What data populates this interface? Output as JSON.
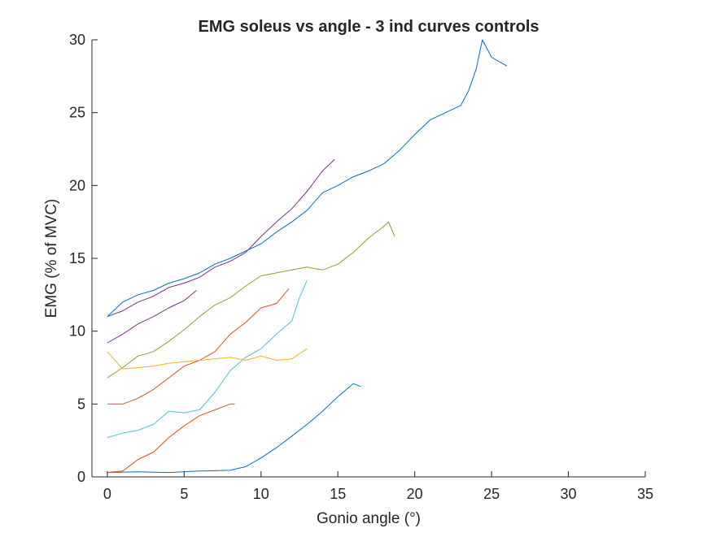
{
  "chart_data": {
    "type": "line",
    "title": "EMG soleus vs angle - 3 ind curves controls",
    "xlabel": "Gonio angle (°)",
    "ylabel": "EMG (% of MVC)",
    "xlim": [
      -1,
      35
    ],
    "ylim": [
      0,
      30
    ],
    "xticks": [
      0,
      5,
      10,
      15,
      20,
      25,
      30,
      35
    ],
    "yticks": [
      0,
      5,
      10,
      15,
      20,
      25,
      30
    ],
    "grid": false,
    "legend": "none",
    "series": [
      {
        "color": "#0072BD",
        "x": [
          0,
          2,
          4,
          6,
          8,
          9,
          10,
          11,
          12,
          13,
          14,
          15,
          16,
          16.5
        ],
        "y": [
          0.3,
          0.35,
          0.3,
          0.4,
          0.45,
          0.7,
          1.3,
          2.0,
          2.8,
          3.6,
          4.5,
          5.5,
          6.4,
          6.2
        ]
      },
      {
        "color": "#D95319",
        "x": [
          0,
          1,
          2,
          3,
          4,
          5,
          6,
          7,
          8,
          8.3
        ],
        "y": [
          0.3,
          0.4,
          1.2,
          1.7,
          2.7,
          3.5,
          4.2,
          4.6,
          5.0,
          5.0
        ]
      },
      {
        "color": "#4DBEEE",
        "x": [
          0,
          1,
          2,
          3,
          4,
          5,
          6,
          7,
          8,
          9,
          10,
          11,
          12,
          12.5,
          13
        ],
        "y": [
          2.7,
          3.0,
          3.2,
          3.6,
          4.5,
          4.4,
          4.6,
          5.8,
          7.3,
          8.2,
          8.8,
          9.8,
          10.7,
          12.3,
          13.5
        ]
      },
      {
        "color": "#D95319",
        "x": [
          0,
          1,
          2,
          3,
          4,
          5,
          6,
          7,
          8,
          9,
          10,
          11,
          11.8
        ],
        "y": [
          5.0,
          5.0,
          5.4,
          6.0,
          6.8,
          7.6,
          8.0,
          8.6,
          9.8,
          10.6,
          11.6,
          11.9,
          12.9
        ]
      },
      {
        "color": "#EDB120",
        "x": [
          0,
          0.5,
          1,
          2,
          3,
          4,
          5,
          6,
          7,
          8,
          9,
          10,
          11,
          12,
          13
        ],
        "y": [
          8.6,
          8.0,
          7.4,
          7.5,
          7.6,
          7.8,
          7.9,
          8.0,
          8.1,
          8.2,
          8.0,
          8.3,
          8.0,
          8.1,
          8.8
        ]
      },
      {
        "color": "#77AC30",
        "x": [
          0,
          1,
          2,
          3,
          4,
          5,
          6,
          7,
          8,
          9,
          10,
          11,
          12,
          13,
          14,
          15,
          16,
          17,
          18,
          18.3,
          18.7
        ],
        "y": [
          6.8,
          7.5,
          8.3,
          8.6,
          9.3,
          10.1,
          11.0,
          11.8,
          12.3,
          13.1,
          13.8,
          14.0,
          14.2,
          14.4,
          14.2,
          14.6,
          15.4,
          16.4,
          17.2,
          17.5,
          16.5
        ]
      },
      {
        "color": "#7E2F8E",
        "x": [
          0,
          1,
          2,
          3,
          4,
          5,
          5.8
        ],
        "y": [
          9.2,
          9.8,
          10.5,
          11.0,
          11.6,
          12.1,
          12.8
        ]
      },
      {
        "color": "#7E2F8E",
        "x": [
          0,
          1,
          2,
          3,
          4,
          5,
          6,
          7,
          8,
          9,
          10,
          11,
          12,
          13,
          14,
          14.8
        ],
        "y": [
          11.0,
          11.4,
          12.0,
          12.4,
          13.0,
          13.3,
          13.7,
          14.4,
          14.8,
          15.4,
          16.5,
          17.5,
          18.4,
          19.6,
          21.0,
          21.8
        ]
      },
      {
        "color": "#0072BD",
        "x": [
          0,
          1,
          2,
          3,
          4,
          5,
          6,
          7,
          8,
          9,
          10,
          11,
          12,
          13,
          14,
          15,
          16,
          17,
          18,
          19,
          20,
          21,
          22,
          23,
          23.5,
          24,
          24.4,
          25,
          25.5,
          26
        ],
        "y": [
          11.0,
          12.0,
          12.5,
          12.8,
          13.3,
          13.6,
          14.0,
          14.6,
          15.0,
          15.5,
          16.0,
          16.8,
          17.5,
          18.3,
          19.5,
          20.0,
          20.6,
          21.0,
          21.5,
          22.4,
          23.5,
          24.5,
          25.0,
          25.5,
          26.5,
          28.0,
          30.0,
          28.8,
          28.5,
          28.2
        ]
      }
    ]
  }
}
